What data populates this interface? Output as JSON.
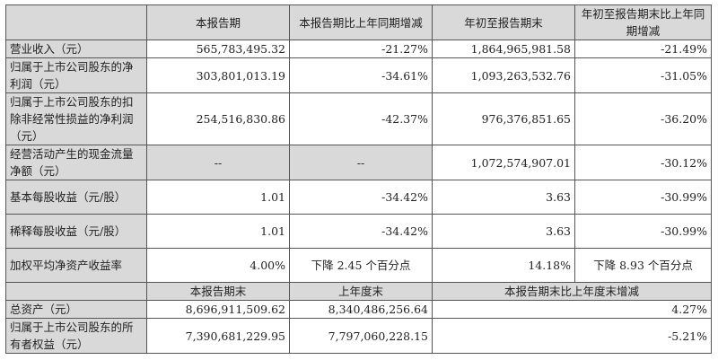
{
  "header": [
    "",
    "本报告期",
    "本报告期比上年同期增减",
    "年初至报告期末",
    "年初至报告期末比上年同期增减"
  ],
  "rows": [
    {
      "label": "营业收入（元）",
      "cells": [
        "565,783,495.32",
        "-21.27%",
        "1,864,965,981.58",
        "-21.49%"
      ]
    },
    {
      "label": "归属于上市公司股东的净利润（元）",
      "cells": [
        "303,801,013.19",
        "-34.61%",
        "1,093,263,532.76",
        "-31.05%"
      ]
    },
    {
      "label": "归属于上市公司股东的扣除非经常性损益的净利润（元）",
      "cells": [
        "254,516,830.86",
        "-42.37%",
        "976,376,851.65",
        "-36.20%"
      ]
    },
    {
      "label": "经营活动产生的现金流量净额（元）",
      "cells": [
        "--",
        "--",
        "1,072,574,907.01",
        "-30.12%"
      ]
    },
    {
      "label": "基本每股收益（元/股）",
      "cells": [
        "1.01",
        "-34.42%",
        "3.63",
        "-30.99%"
      ]
    },
    {
      "label": "稀释每股收益（元/股）",
      "cells": [
        "1.01",
        "-34.42%",
        "3.63",
        "-30.99%"
      ]
    },
    {
      "label": "加权平均净资产收益率",
      "cells": [
        "4.00%",
        "下降 2.45 个百分点",
        "14.18%",
        "下降 8.93 个百分点"
      ]
    }
  ],
  "header2": [
    "",
    "本报告期末",
    "上年度末",
    "本报告期末比上年度末增减"
  ],
  "rows2": [
    {
      "label": "总资产（元）",
      "cells": [
        "8,696,911,509.62",
        "8,340,486,256.64",
        "4.27%"
      ]
    },
    {
      "label": "归属于上市公司股东的所有者权益（元）",
      "cells": [
        "7,390,681,229.95",
        "7,797,060,228.15",
        "-5.21%"
      ]
    }
  ]
}
